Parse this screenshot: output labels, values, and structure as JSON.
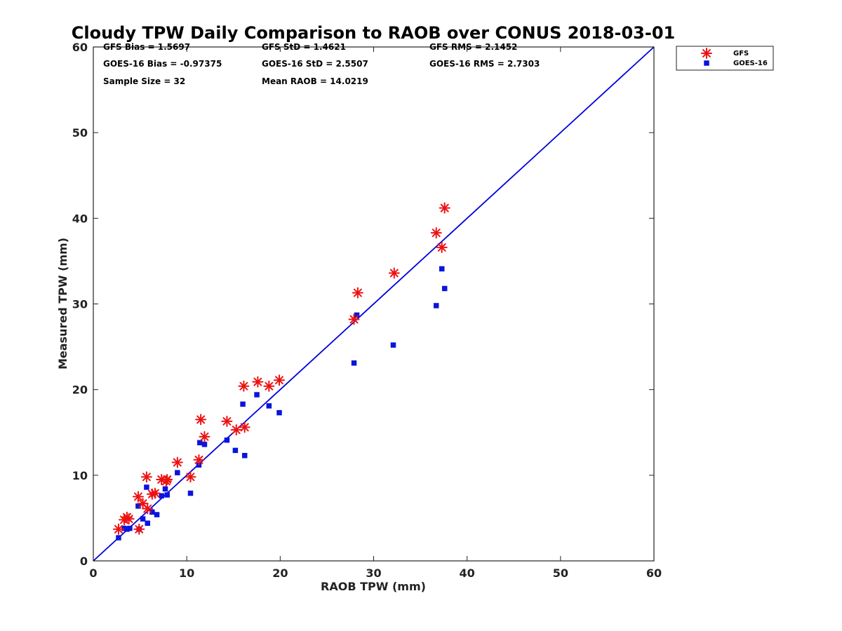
{
  "chart_data": {
    "type": "scatter",
    "title": "Cloudy TPW Daily Comparison to RAOB over CONUS 2018-03-01",
    "xlabel": "RAOB TPW (mm)",
    "ylabel": "Measured TPW (mm)",
    "xlim": [
      0,
      60
    ],
    "ylim": [
      0,
      60
    ],
    "xticks": [
      0,
      10,
      20,
      30,
      40,
      50,
      60
    ],
    "yticks": [
      0,
      10,
      20,
      30,
      40,
      50,
      60
    ],
    "grid": false,
    "legend_position": "outside-top-right",
    "reference_line": {
      "from": [
        0,
        0
      ],
      "to": [
        60,
        60
      ],
      "color": "#0000dd"
    },
    "stats": [
      {
        "id": "gfs-bias",
        "text": "GFS Bias = 1.5697"
      },
      {
        "id": "gfs-std",
        "text": "GFS StD = 1.4621"
      },
      {
        "id": "gfs-rms",
        "text": "GFS RMS = 2.1452"
      },
      {
        "id": "goes-bias",
        "text": "GOES-16 Bias = -0.97375"
      },
      {
        "id": "goes-std",
        "text": "GOES-16 StD = 2.5507"
      },
      {
        "id": "goes-rms",
        "text": "GOES-16 RMS = 2.7303"
      },
      {
        "id": "sample-size",
        "text": "Sample Size = 32"
      },
      {
        "id": "mean-raob",
        "text": "Mean RAOB = 14.0219"
      }
    ],
    "series": [
      {
        "name": "GFS",
        "marker": "asterisk",
        "color": "#ee1111",
        "points": [
          [
            2.7,
            3.7
          ],
          [
            3.3,
            4.8
          ],
          [
            3.6,
            5.1
          ],
          [
            3.8,
            4.9
          ],
          [
            4.8,
            7.5
          ],
          [
            4.9,
            3.7
          ],
          [
            5.3,
            6.7
          ],
          [
            5.7,
            9.8
          ],
          [
            5.8,
            6.1
          ],
          [
            6.3,
            7.8
          ],
          [
            6.6,
            7.9
          ],
          [
            7.3,
            9.5
          ],
          [
            7.8,
            9.3
          ],
          [
            7.9,
            9.5
          ],
          [
            9.0,
            11.5
          ],
          [
            10.4,
            9.8
          ],
          [
            11.3,
            11.8
          ],
          [
            11.5,
            16.5
          ],
          [
            11.9,
            14.5
          ],
          [
            14.3,
            16.3
          ],
          [
            15.3,
            15.3
          ],
          [
            16.1,
            20.4
          ],
          [
            16.2,
            15.6
          ],
          [
            17.6,
            20.9
          ],
          [
            18.8,
            20.4
          ],
          [
            19.9,
            21.1
          ],
          [
            27.9,
            28.2
          ],
          [
            28.3,
            31.3
          ],
          [
            32.2,
            33.6
          ],
          [
            36.7,
            38.3
          ],
          [
            37.3,
            36.6
          ],
          [
            37.6,
            41.2
          ]
        ]
      },
      {
        "name": "GOES-16",
        "marker": "square",
        "color": "#0a14dd",
        "points": [
          [
            2.7,
            2.7
          ],
          [
            3.3,
            3.8
          ],
          [
            3.6,
            3.7
          ],
          [
            3.9,
            3.8
          ],
          [
            4.8,
            6.4
          ],
          [
            4.9,
            3.7
          ],
          [
            5.3,
            4.9
          ],
          [
            5.7,
            8.6
          ],
          [
            5.8,
            4.4
          ],
          [
            6.3,
            5.7
          ],
          [
            6.8,
            5.4
          ],
          [
            7.3,
            7.6
          ],
          [
            7.7,
            8.4
          ],
          [
            7.9,
            7.7
          ],
          [
            9.0,
            10.3
          ],
          [
            10.4,
            7.9
          ],
          [
            11.3,
            11.2
          ],
          [
            11.4,
            13.8
          ],
          [
            11.9,
            13.6
          ],
          [
            14.3,
            14.1
          ],
          [
            15.2,
            12.9
          ],
          [
            16.0,
            18.3
          ],
          [
            16.2,
            12.3
          ],
          [
            17.5,
            19.4
          ],
          [
            18.8,
            18.1
          ],
          [
            19.9,
            17.3
          ],
          [
            27.9,
            23.1
          ],
          [
            28.2,
            28.7
          ],
          [
            32.1,
            25.2
          ],
          [
            36.7,
            29.8
          ],
          [
            37.3,
            34.1
          ],
          [
            37.6,
            31.8
          ]
        ]
      }
    ]
  }
}
